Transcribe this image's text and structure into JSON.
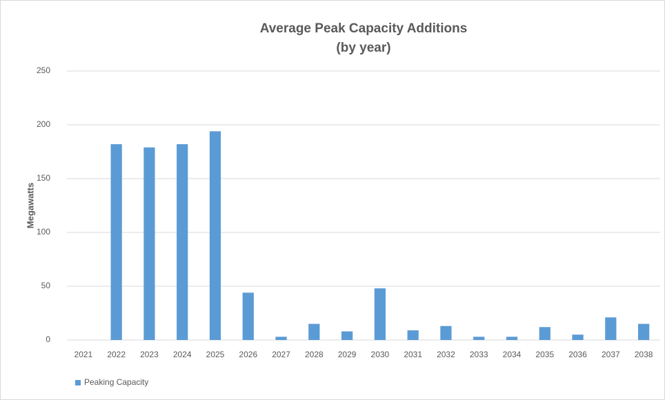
{
  "chart_data": {
    "type": "bar",
    "title": "Average Peak Capacity Additions",
    "subtitle": "(by year)",
    "y_label": "Megawatts",
    "categories": [
      "2021",
      "2022",
      "2023",
      "2024",
      "2025",
      "2026",
      "2027",
      "2028",
      "2029",
      "2030",
      "2031",
      "2032",
      "2033",
      "2034",
      "2035",
      "2036",
      "2037",
      "2038"
    ],
    "series": [
      {
        "name": "Peaking Capacity",
        "color": "#5b9bd5",
        "values": [
          0,
          182,
          179,
          182,
          194,
          44,
          3,
          15,
          8,
          48,
          9,
          13,
          3,
          3,
          12,
          5,
          21,
          15
        ]
      }
    ],
    "ylim": [
      0,
      250
    ],
    "yticks": [
      0,
      50,
      100,
      150,
      200,
      250
    ],
    "grid": true,
    "legend": "bottom-left"
  }
}
